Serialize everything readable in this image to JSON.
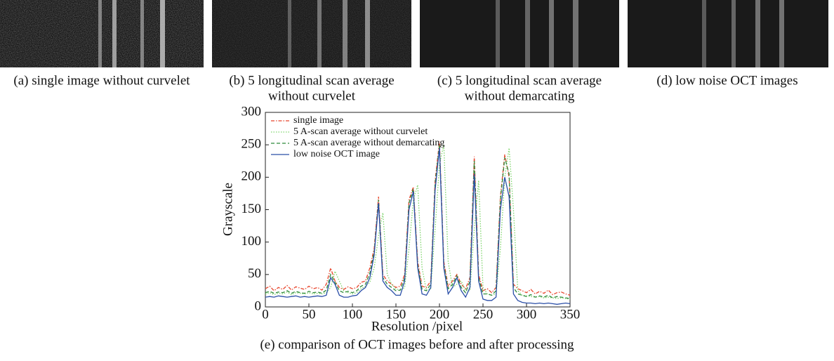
{
  "panels": [
    {
      "caption_lines": [
        "(a) single image without curvelet"
      ]
    },
    {
      "caption_lines": [
        "(b) 5 longitudinal scan average",
        "without curvelet"
      ]
    },
    {
      "caption_lines": [
        "(c) 5 longitudinal scan average",
        "without demarcating"
      ]
    },
    {
      "caption_lines": [
        "(d) low noise OCT images"
      ]
    }
  ],
  "chart_data": {
    "type": "line",
    "caption": "(e) comparison of OCT images before and after processing",
    "xlabel": "Resolution /pixel",
    "ylabel": "Grayscale",
    "xlim": [
      0,
      350
    ],
    "ylim": [
      0,
      300
    ],
    "xticks": [
      0,
      50,
      100,
      150,
      200,
      250,
      300,
      350
    ],
    "yticks": [
      0,
      50,
      100,
      150,
      200,
      250,
      300
    ],
    "legend": "upper left",
    "x": [
      0,
      5,
      10,
      15,
      20,
      25,
      30,
      35,
      40,
      45,
      50,
      55,
      60,
      65,
      70,
      75,
      80,
      85,
      90,
      95,
      100,
      105,
      110,
      115,
      120,
      125,
      130,
      135,
      140,
      145,
      150,
      155,
      160,
      165,
      170,
      175,
      180,
      185,
      190,
      195,
      200,
      205,
      210,
      215,
      220,
      225,
      230,
      235,
      240,
      245,
      250,
      255,
      260,
      265,
      270,
      275,
      280,
      285,
      290,
      295,
      300,
      305,
      310,
      315,
      320,
      325,
      330,
      335,
      340,
      345,
      350
    ],
    "series": [
      {
        "name": "single image",
        "color": "#e8452c",
        "style": "dash-dot",
        "values": [
          28,
          32,
          25,
          30,
          27,
          33,
          26,
          31,
          29,
          27,
          32,
          28,
          30,
          26,
          35,
          60,
          40,
          30,
          27,
          31,
          28,
          30,
          38,
          40,
          60,
          90,
          170,
          50,
          40,
          35,
          30,
          32,
          50,
          165,
          185,
          70,
          32,
          30,
          40,
          195,
          255,
          70,
          32,
          40,
          50,
          35,
          28,
          45,
          232,
          50,
          25,
          28,
          22,
          30,
          170,
          235,
          200,
          35,
          28,
          25,
          22,
          27,
          20,
          24,
          21,
          26,
          19,
          22,
          23,
          20,
          18
        ]
      },
      {
        "name": "5 A-scan average without curvelet",
        "color": "#7dd46a",
        "style": "dotted",
        "values": [
          20,
          22,
          19,
          21,
          20,
          23,
          19,
          22,
          21,
          20,
          22,
          20,
          21,
          20,
          22,
          30,
          55,
          40,
          25,
          22,
          20,
          22,
          28,
          32,
          38,
          60,
          110,
          145,
          50,
          35,
          28,
          25,
          30,
          90,
          165,
          188,
          60,
          25,
          28,
          120,
          220,
          250,
          70,
          30,
          35,
          40,
          25,
          25,
          120,
          195,
          30,
          20,
          18,
          20,
          90,
          200,
          245,
          150,
          25,
          18,
          17,
          16,
          15,
          16,
          14,
          15,
          14,
          13,
          14,
          13,
          12
        ]
      },
      {
        "name": "5 A-scan average without demarcating",
        "color": "#2f8a3a",
        "style": "dashed",
        "values": [
          22,
          24,
          21,
          23,
          22,
          25,
          21,
          24,
          22,
          21,
          24,
          22,
          23,
          21,
          26,
          50,
          38,
          25,
          22,
          24,
          22,
          25,
          32,
          35,
          52,
          85,
          165,
          45,
          35,
          30,
          25,
          26,
          45,
          160,
          182,
          65,
          27,
          25,
          35,
          190,
          250,
          65,
          28,
          35,
          48,
          30,
          22,
          40,
          225,
          45,
          20,
          20,
          18,
          25,
          165,
          230,
          205,
          30,
          20,
          18,
          16,
          19,
          15,
          17,
          15,
          18,
          14,
          16,
          15,
          14,
          13
        ]
      },
      {
        "name": "low noise OCT image",
        "color": "#2b4fa8",
        "style": "solid",
        "values": [
          15,
          16,
          15,
          17,
          16,
          15,
          16,
          17,
          15,
          16,
          15,
          16,
          17,
          16,
          18,
          45,
          35,
          18,
          15,
          15,
          17,
          18,
          25,
          30,
          45,
          80,
          160,
          40,
          30,
          25,
          18,
          18,
          40,
          150,
          178,
          60,
          20,
          18,
          30,
          180,
          245,
          60,
          20,
          30,
          45,
          25,
          15,
          30,
          205,
          40,
          12,
          10,
          10,
          15,
          150,
          200,
          170,
          20,
          10,
          7,
          6,
          6,
          5,
          6,
          5,
          6,
          5,
          4,
          5,
          6,
          5
        ]
      }
    ]
  }
}
